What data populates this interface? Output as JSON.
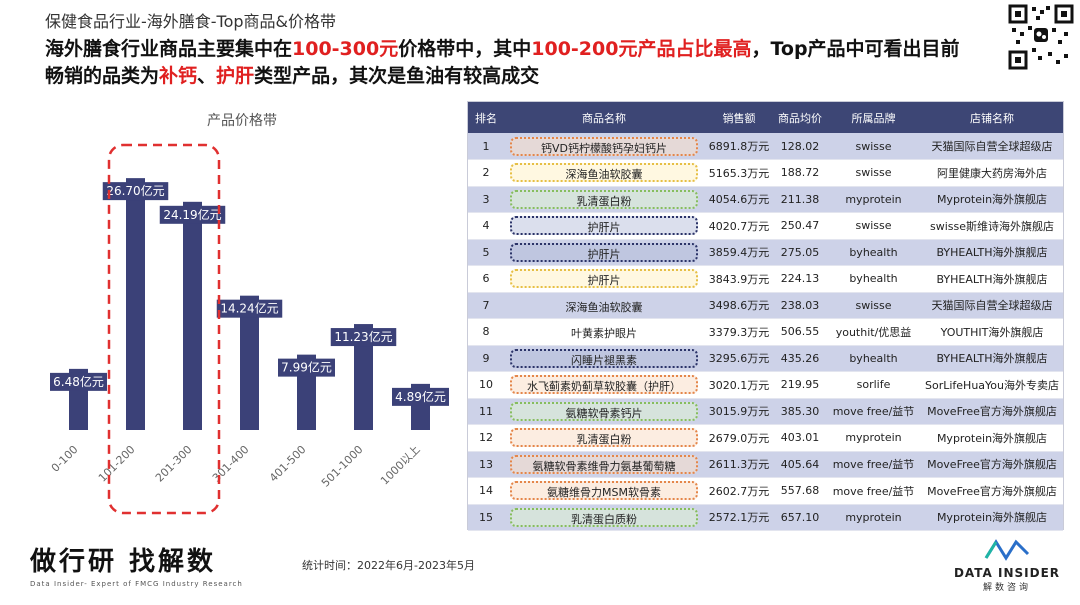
{
  "header": {
    "subtitle": "保健食品行业-海外膳食-Top商品&价格带",
    "headline": {
      "p1": "海外膳食行业商品主要集中在",
      "h1": "100-300元",
      "p2": "价格带中，其中",
      "h2": "100-200元产品占比最高",
      "p3": "，Top产品中可看出目前畅销的品类为",
      "h3": "补钙",
      "p4": "、",
      "h4": "护肝",
      "p5": "类型产品，其次是鱼油有较高成交"
    }
  },
  "chart_data": {
    "type": "bar",
    "title": "产品价格带",
    "categories": [
      "0-100",
      "101-200",
      "201-300",
      "301-400",
      "401-500",
      "501-1000",
      "1000以上"
    ],
    "values": [
      6.48,
      26.7,
      24.19,
      14.24,
      7.99,
      11.23,
      4.89
    ],
    "labels": [
      "6.48亿元",
      "26.70亿元",
      "24.19亿元",
      "14.24亿元",
      "7.99亿元",
      "11.23亿元",
      "4.89亿元"
    ],
    "unit": "亿元",
    "ylim": [
      0,
      30
    ],
    "bar_color": "#3b4178",
    "highlight_categories": [
      "101-200",
      "201-300"
    ],
    "highlight_color": "#e03030"
  },
  "table": {
    "headers": [
      "排名",
      "商品名称",
      "销售额",
      "商品均价",
      "所属品牌",
      "店铺名称"
    ],
    "rows": [
      {
        "rank": "1",
        "name": "钙VD钙柠檬酸钙孕妇钙片",
        "sales": "6891.8万元",
        "price": "128.02",
        "brand": "swisse",
        "store": "天猫国际自营全球超级店",
        "tag": "orange"
      },
      {
        "rank": "2",
        "name": "深海鱼油软胶囊",
        "sales": "5165.3万元",
        "price": "188.72",
        "brand": "swisse",
        "store": "阿里健康大药房海外店",
        "tag": "yellow"
      },
      {
        "rank": "3",
        "name": "乳清蛋白粉",
        "sales": "4054.6万元",
        "price": "211.38",
        "brand": "myprotein",
        "store": "Myprotein海外旗舰店",
        "tag": "green"
      },
      {
        "rank": "4",
        "name": "护肝片",
        "sales": "4020.7万元",
        "price": "250.47",
        "brand": "swisse",
        "store": "swisse斯维诗海外旗舰店",
        "tag": "navy"
      },
      {
        "rank": "5",
        "name": "护肝片",
        "sales": "3859.4万元",
        "price": "275.05",
        "brand": "byhealth",
        "store": "BYHEALTH海外旗舰店",
        "tag": "navy"
      },
      {
        "rank": "6",
        "name": "护肝片",
        "sales": "3843.9万元",
        "price": "224.13",
        "brand": "byhealth",
        "store": "BYHEALTH海外旗舰店",
        "tag": "yellow"
      },
      {
        "rank": "7",
        "name": "深海鱼油软胶囊",
        "sales": "3498.6万元",
        "price": "238.03",
        "brand": "swisse",
        "store": "天猫国际自营全球超级店",
        "tag": "none"
      },
      {
        "rank": "8",
        "name": "叶黄素护眼片",
        "sales": "3379.3万元",
        "price": "506.55",
        "brand": "youthit/优思益",
        "store": "YOUTHIT海外旗舰店",
        "tag": "none"
      },
      {
        "rank": "9",
        "name": "闪睡片褪黑素",
        "sales": "3295.6万元",
        "price": "435.26",
        "brand": "byhealth",
        "store": "BYHEALTH海外旗舰店",
        "tag": "navy"
      },
      {
        "rank": "10",
        "name": "水飞蓟素奶蓟草软胶囊（护肝）",
        "sales": "3020.1万元",
        "price": "219.95",
        "brand": "sorlife",
        "store": "SorLifeHuaYou海外专卖店",
        "tag": "orange"
      },
      {
        "rank": "11",
        "name": "氨糖软骨素钙片",
        "sales": "3015.9万元",
        "price": "385.30",
        "brand": "move free/益节",
        "store": "MoveFree官方海外旗舰店",
        "tag": "green"
      },
      {
        "rank": "12",
        "name": "乳清蛋白粉",
        "sales": "2679.0万元",
        "price": "403.01",
        "brand": "myprotein",
        "store": "Myprotein海外旗舰店",
        "tag": "orange"
      },
      {
        "rank": "13",
        "name": "氨糖软骨素维骨力氨基葡萄糖",
        "sales": "2611.3万元",
        "price": "405.64",
        "brand": "move free/益节",
        "store": "MoveFree官方海外旗舰店",
        "tag": "orange"
      },
      {
        "rank": "14",
        "name": "氨糖维骨力MSM软骨素",
        "sales": "2602.7万元",
        "price": "557.68",
        "brand": "move free/益节",
        "store": "MoveFree官方海外旗舰店",
        "tag": "orange"
      },
      {
        "rank": "15",
        "name": "乳清蛋白质粉",
        "sales": "2572.1万元",
        "price": "657.10",
        "brand": "myprotein",
        "store": "Myprotein海外旗舰店",
        "tag": "green"
      }
    ]
  },
  "footer": {
    "logo_main": "做行研 找解数",
    "logo_tagline": "Data Insider- Expert of FMCG Industry Research",
    "stat_time": "统计时间：2022年6月-2023年5月",
    "brand_name": "DATA INSIDER",
    "brand_sub": "解数咨询"
  },
  "colors": {
    "accent_red": "#e02020",
    "navy": "#3d4675",
    "row_alt": "#cdd2e8"
  }
}
